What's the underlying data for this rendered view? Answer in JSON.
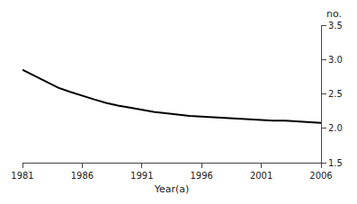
{
  "chart_data": {
    "type": "line",
    "xlabel": "Year(a)",
    "ylabel": "no.",
    "x": [
      1981,
      1982,
      1983,
      1984,
      1985,
      1986,
      1987,
      1988,
      1989,
      1990,
      1991,
      1992,
      1993,
      1994,
      1995,
      1996,
      1997,
      1998,
      1999,
      2000,
      2001,
      2002,
      2003,
      2004,
      2005,
      2006
    ],
    "values": [
      2.85,
      2.76,
      2.67,
      2.59,
      2.53,
      2.47,
      2.42,
      2.37,
      2.33,
      2.3,
      2.27,
      2.24,
      2.22,
      2.2,
      2.18,
      2.17,
      2.16,
      2.15,
      2.14,
      2.13,
      2.12,
      2.11,
      2.11,
      2.1,
      2.09,
      2.08
    ],
    "color": "#000000",
    "line_style": "solid",
    "xlim": [
      1981,
      2006
    ],
    "xticks": [
      1981,
      1986,
      1991,
      1996,
      2001,
      2006
    ],
    "ylim": [
      1.5,
      3.5
    ],
    "yticks": [
      1.5,
      {
        "value": 2.0,
        "label": "2.0"
      },
      2.5,
      {
        "value": 3.0,
        "label": "3.0"
      },
      3.5
    ],
    "grid": false
  }
}
